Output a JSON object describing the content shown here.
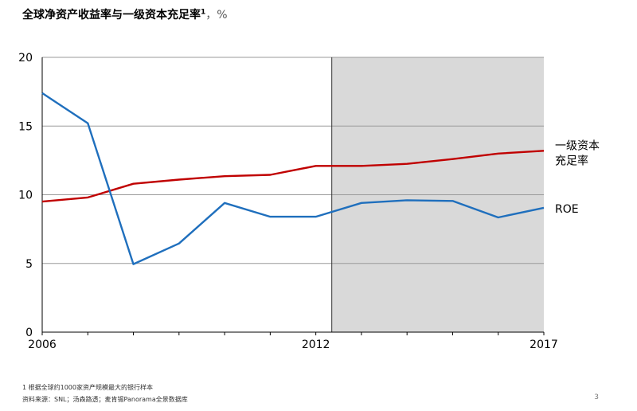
{
  "header": {
    "title": "全球净资产收益率与一级资本充足率",
    "footnote_mark": "1",
    "unit": "，%"
  },
  "footer": {
    "note": "1 根据全球约1000家资产规模最大的银行样本",
    "source": "资料来源：SNL；汤森路透；麦肯锡Panorama全景数据库",
    "page_number": "3"
  },
  "chart_data": {
    "type": "line",
    "x": [
      2006,
      2007,
      2008,
      2009,
      2010,
      2011,
      2012,
      2013,
      2014,
      2015,
      2016,
      2017
    ],
    "x_tick_labels": [
      "2006",
      "2012",
      "2017"
    ],
    "y_tick_labels": [
      "0",
      "5",
      "10",
      "15",
      "20"
    ],
    "xlim": [
      2006,
      2017
    ],
    "ylim": [
      0,
      20
    ],
    "grid": true,
    "background": "#d9d9d9",
    "highlight_from": 2012.35,
    "series": [
      {
        "name": "一级资本充足率",
        "label_lines": [
          "一级资本",
          "充足率"
        ],
        "color": "#c00000",
        "values": [
          9.5,
          9.8,
          10.8,
          11.1,
          11.35,
          11.45,
          12.1,
          12.1,
          12.25,
          12.6,
          13.0,
          13.2
        ]
      },
      {
        "name": "ROE",
        "label_lines": [
          "ROE"
        ],
        "color": "#1f6fbd",
        "values": [
          17.4,
          15.2,
          4.95,
          6.45,
          9.4,
          8.4,
          8.4,
          9.4,
          9.6,
          9.55,
          8.35,
          9.05
        ]
      }
    ]
  }
}
